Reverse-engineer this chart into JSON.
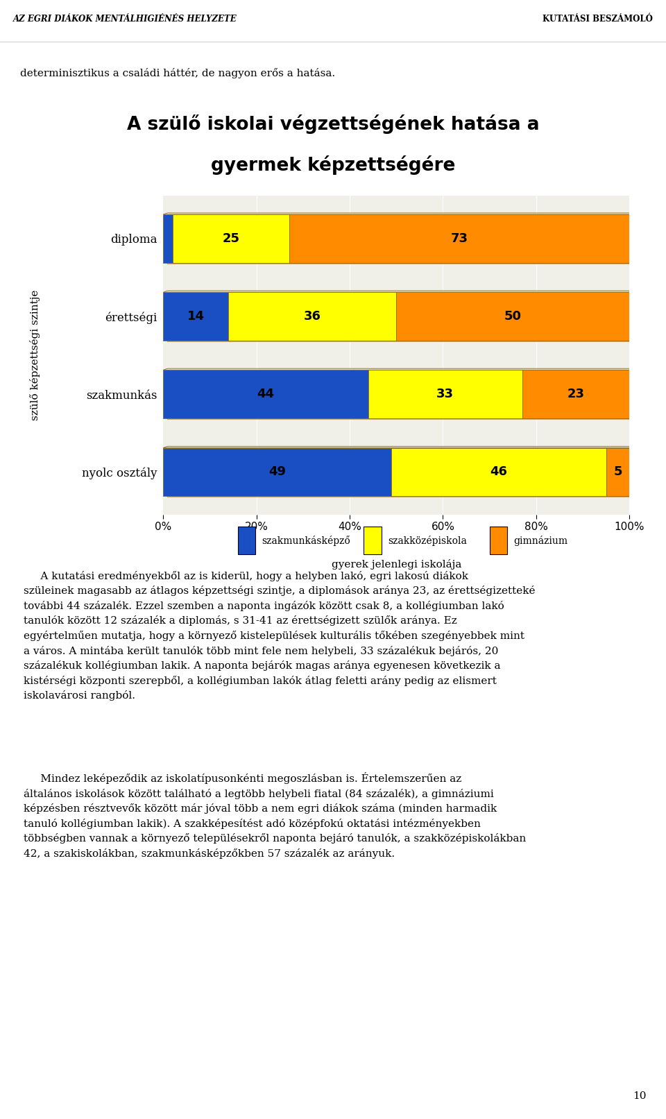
{
  "title_line1": "A szülő iskolai végzettségének hatása a",
  "title_line2": "gyermek képzettségére",
  "categories": [
    "diploma",
    "érettségi",
    "szakmunkás",
    "nyolc osztály"
  ],
  "series_szakmunkaskepzo": [
    2,
    14,
    44,
    49
  ],
  "series_szakkozepiskola": [
    25,
    36,
    33,
    46
  ],
  "series_gimnazium": [
    73,
    50,
    23,
    5
  ],
  "color_szakmunkaskepzo": "#1A4FC4",
  "color_szakkozepiskola": "#FFFF00",
  "color_gimnazium": "#FF8C00",
  "xlabel": "gyerek jelenlegi iskolája",
  "ylabel": "szülő képzettségi szintje",
  "legend_szakmunkaskepzo": "szakmunkásképző",
  "legend_szakkozepiskola": "szakközépiskola",
  "legend_gimnazium": "gimnázium",
  "header_left": "AZ EGRI DIÁKOK MENTÁLHIGIÉNÉS HELYZETE",
  "header_right": "KUTATÁSI BESZÁMOLÓ",
  "intro_text": "determinisztikus a családi háttér, de nagyon erős a hatása.",
  "body_text1_line1": "     A kutatási eredményekből az is kiderül, hogy a helyben lakó, egri lakosú diákok",
  "body_text1_line2": "szüleinek magasabb az átlagos képzettségi szintje, a diplomások aránya 23, az érettségizetteké",
  "body_text1_line3": "további 44 százalék. Ezzel szemben a naponta ingázók között csak 8, a kollégiumban lakó",
  "body_text1_line4": "tanulók között 12 százalék a diplomás, s 31-41 az érettségizett szülők aránya. Ez",
  "body_text1_line5": "egyértelműen mutatja, hogy a környező kistelepülések kulturális tőkében szegényebbek mint",
  "body_text1_line6": "a város. A mintába került tanulók több mint fele nem helybeli, 33 százalékuk bejárós, 20",
  "body_text1_line7": "százalékuk kollégiumban lakik. A naponta bejárók magas aránya egyenesen következik a",
  "body_text1_line8": "kistérségi központi szerepből, a kollégiumban lakók átlag feletti arány pedig az elismert",
  "body_text1_line9": "iskolavárosi rangból.",
  "body_text2_line1": "     Mindez leképeződik az iskolatípusonkénti megoszlásban is. Értelemszerűen az",
  "body_text2_line2": "általános iskolások között található a legtöbb helybeli fiatal (84 százalék), a gimnáziumi",
  "body_text2_line3": "képzésben résztvevők között már jóval több a nem egri diákok száma (minden harmadik",
  "body_text2_line4": "tanuló kollégiumban lakik). A szakképesítést adó középfokú oktatási intézményekben",
  "body_text2_line5": "többségben vannak a környező településekről naponta bejáró tanulók, a szakközépiskolákban",
  "body_text2_line6": "42, a szakiskolákban, szakmunkásképzőkben 57 százalék az arányuk.",
  "page_number": "10",
  "bar_edge_color": "#8B6914",
  "shadow_color": "#C8A870",
  "top_face_color": "#E8DFB8",
  "chart_bg": "#F0EFE8",
  "bg_color": "#FFFFFF",
  "xtick_labels": [
    "0%",
    "20%",
    "40%",
    "60%",
    "80%",
    "100%"
  ],
  "xtick_vals": [
    0.0,
    0.2,
    0.4,
    0.6,
    0.8,
    1.0
  ]
}
